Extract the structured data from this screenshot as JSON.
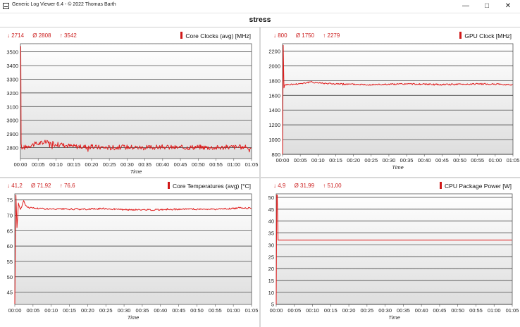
{
  "window": {
    "title": "Generic Log Viewer 6.4 - © 2022 Thomas Barth",
    "minimize_glyph": "—",
    "maximize_glyph": "□",
    "close_glyph": "✕"
  },
  "header": {
    "title": "stress"
  },
  "colors": {
    "series": "#e01c1c",
    "stats": "#cc1f1f",
    "plot_bg_top": "#ffffff",
    "plot_bg_bottom": "#dedede"
  },
  "panels": [
    {
      "title": "Core Clocks (avg) [MHz]",
      "stats": {
        "min": "↓ 2714",
        "avg": "Ø 2808",
        "max": "↑ 3542"
      }
    },
    {
      "title": "GPU Clock [MHz]",
      "stats": {
        "min": "↓ 800",
        "avg": "Ø 1750",
        "max": "↑ 2279"
      }
    },
    {
      "title": "Core Temperatures (avg) [°C]",
      "stats": {
        "min": "↓ 41,2",
        "avg": "Ø 71,92",
        "max": "↑ 76,6"
      }
    },
    {
      "title": "CPU Package Power [W]",
      "stats": {
        "min": "↓ 4,9",
        "avg": "Ø 31,99",
        "max": "↑ 51,00"
      }
    }
  ],
  "chart_data": [
    {
      "type": "line",
      "title": "Core Clocks (avg) [MHz]",
      "xlabel": "Time",
      "ylabel": "",
      "x_ticks": [
        "00:00",
        "00:05",
        "00:10",
        "00:15",
        "00:20",
        "00:25",
        "00:30",
        "00:35",
        "00:40",
        "00:45",
        "00:50",
        "00:55",
        "01:00",
        "01:05"
      ],
      "y_ticks": [
        "2800",
        "2900",
        "3000",
        "3100",
        "3200",
        "3300",
        "3400",
        "3500"
      ],
      "ylim": [
        2720,
        3560
      ],
      "xlim_minutes": [
        0,
        65
      ],
      "series": [
        {
          "x_minutes": [
            0,
            0.1,
            0.2,
            0.4,
            1,
            2,
            3,
            5,
            7,
            8,
            10,
            15,
            20,
            25,
            30,
            35,
            40,
            45,
            50,
            55,
            60,
            65
          ],
          "values": [
            3542,
            3540,
            2830,
            2790,
            2800,
            2810,
            2820,
            2830,
            2840,
            2835,
            2825,
            2810,
            2805,
            2800,
            2805,
            2800,
            2805,
            2800,
            2805,
            2800,
            2805,
            2800
          ]
        }
      ]
    },
    {
      "type": "line",
      "title": "GPU Clock [MHz]",
      "xlabel": "Time",
      "ylabel": "",
      "x_ticks": [
        "00:00",
        "00:05",
        "00:10",
        "00:15",
        "00:20",
        "00:25",
        "00:30",
        "00:35",
        "00:40",
        "00:45",
        "00:50",
        "00:55",
        "01:00",
        "01:05"
      ],
      "y_ticks": [
        "800",
        "1000",
        "1200",
        "1400",
        "1600",
        "1800",
        "2000",
        "2200"
      ],
      "ylim": [
        800,
        2300
      ],
      "xlim_minutes": [
        0,
        65
      ],
      "series": [
        {
          "x_minutes": [
            0,
            0.2,
            0.4,
            0.6,
            1,
            3,
            5,
            8,
            10,
            15,
            20,
            25,
            30,
            35,
            40,
            45,
            50,
            55,
            60,
            65
          ],
          "values": [
            800,
            2279,
            1700,
            1740,
            1745,
            1750,
            1760,
            1780,
            1770,
            1755,
            1750,
            1745,
            1750,
            1755,
            1750,
            1745,
            1750,
            1755,
            1750,
            1745
          ]
        }
      ]
    },
    {
      "type": "line",
      "title": "Core Temperatures (avg) [°C]",
      "xlabel": "Time",
      "ylabel": "",
      "x_ticks": [
        "00:00",
        "00:05",
        "00:10",
        "00:15",
        "00:20",
        "00:25",
        "00:30",
        "00:35",
        "00:40",
        "00:45",
        "00:50",
        "00:55",
        "01:00",
        "01:05"
      ],
      "y_ticks": [
        "45",
        "50",
        "55",
        "60",
        "65",
        "70",
        "75"
      ],
      "ylim": [
        41,
        77
      ],
      "xlim_minutes": [
        0,
        65
      ],
      "series": [
        {
          "x_minutes": [
            0,
            0.3,
            0.6,
            1,
            1.5,
            2,
            2.5,
            3,
            4,
            6,
            10,
            15,
            20,
            25,
            30,
            35,
            40,
            45,
            50,
            55,
            60,
            62,
            65
          ],
          "values": [
            41.2,
            76.6,
            66,
            74,
            72,
            73,
            75,
            73,
            72.5,
            72.3,
            72,
            72,
            72,
            72.2,
            71.8,
            71.8,
            71.8,
            72,
            72,
            72,
            72.2,
            72.5,
            72.3
          ]
        }
      ]
    },
    {
      "type": "line",
      "title": "CPU Package Power [W]",
      "xlabel": "Time",
      "ylabel": "",
      "x_ticks": [
        "00:00",
        "00:05",
        "00:10",
        "00:15",
        "00:20",
        "00:25",
        "00:30",
        "00:35",
        "00:40",
        "00:45",
        "00:50",
        "00:55",
        "01:00",
        "01:05"
      ],
      "y_ticks": [
        "5",
        "10",
        "15",
        "20",
        "25",
        "30",
        "35",
        "40",
        "45",
        "50"
      ],
      "ylim": [
        4.9,
        51.5
      ],
      "xlim_minutes": [
        0,
        65
      ],
      "series": [
        {
          "x_minutes": [
            0,
            0.15,
            0.3,
            0.5,
            1,
            65
          ],
          "values": [
            4.9,
            51,
            51,
            32,
            32,
            32
          ]
        }
      ]
    }
  ]
}
